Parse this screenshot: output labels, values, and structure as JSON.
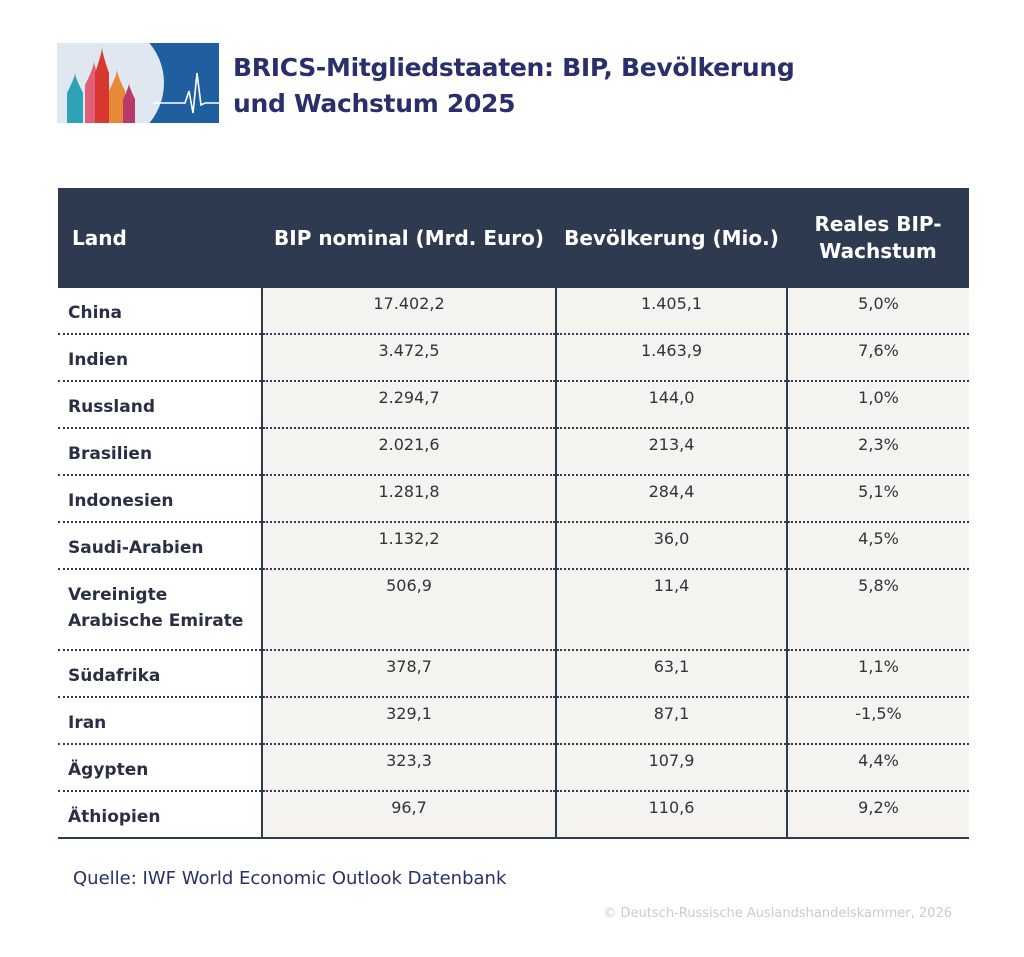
{
  "title": {
    "line1": "BRICS-Mitgliedstaaten: BIP, Bevölkerung",
    "line2": "und Wachstum 2025"
  },
  "logo": {
    "icon": "onion-domes-heartbeat-logo",
    "colors": {
      "background": "#1f5fa0",
      "dome_red": "#d8382f",
      "dome_orange": "#e8893a",
      "dome_teal": "#2fa3b5",
      "dome_pink": "#e0607a"
    }
  },
  "table": {
    "headers": {
      "land": "Land",
      "bip": "BIP nominal (Mrd. Euro)",
      "bev": "Bevölkerung (Mio.)",
      "wachstum_line1": "Reales BIP-",
      "wachstum_line2": "Wachstum"
    },
    "rows": [
      {
        "land": "China",
        "bip": "17.402,2",
        "bev": "1.405,1",
        "wachstum": "5,0%"
      },
      {
        "land": "Indien",
        "bip": "3.472,5",
        "bev": "1.463,9",
        "wachstum": "7,6%"
      },
      {
        "land": "Russland",
        "bip": "2.294,7",
        "bev": "144,0",
        "wachstum": "1,0%"
      },
      {
        "land": "Brasilien",
        "bip": "2.021,6",
        "bev": "213,4",
        "wachstum": "2,3%"
      },
      {
        "land": "Indonesien",
        "bip": "1.281,8",
        "bev": "284,4",
        "wachstum": "5,1%"
      },
      {
        "land": "Saudi-Arabien",
        "bip": "1.132,2",
        "bev": "36,0",
        "wachstum": "4,5%"
      },
      {
        "land": "Vereinigte Arabische Emirate",
        "bip": "506,9",
        "bev": "11,4",
        "wachstum": "5,8%"
      },
      {
        "land": "Südafrika",
        "bip": "378,7",
        "bev": "63,1",
        "wachstum": "1,1%"
      },
      {
        "land": "Iran",
        "bip": "329,1",
        "bev": "87,1",
        "wachstum": "-1,5%"
      },
      {
        "land": "Ägypten",
        "bip": "323,3",
        "bev": "107,9",
        "wachstum": "4,4%"
      },
      {
        "land": "Äthiopien",
        "bip": "96,7",
        "bev": "110,6",
        "wachstum": "9,2%"
      }
    ]
  },
  "source": "Quelle: IWF World Economic Outlook Datenbank",
  "copyright": "© Deutsch-Russische Auslandshandelskammer, 2026",
  "colors": {
    "header_bg": "#2e3a50",
    "title": "#2a2f6b",
    "cell_bg": "#f4f3f0"
  }
}
